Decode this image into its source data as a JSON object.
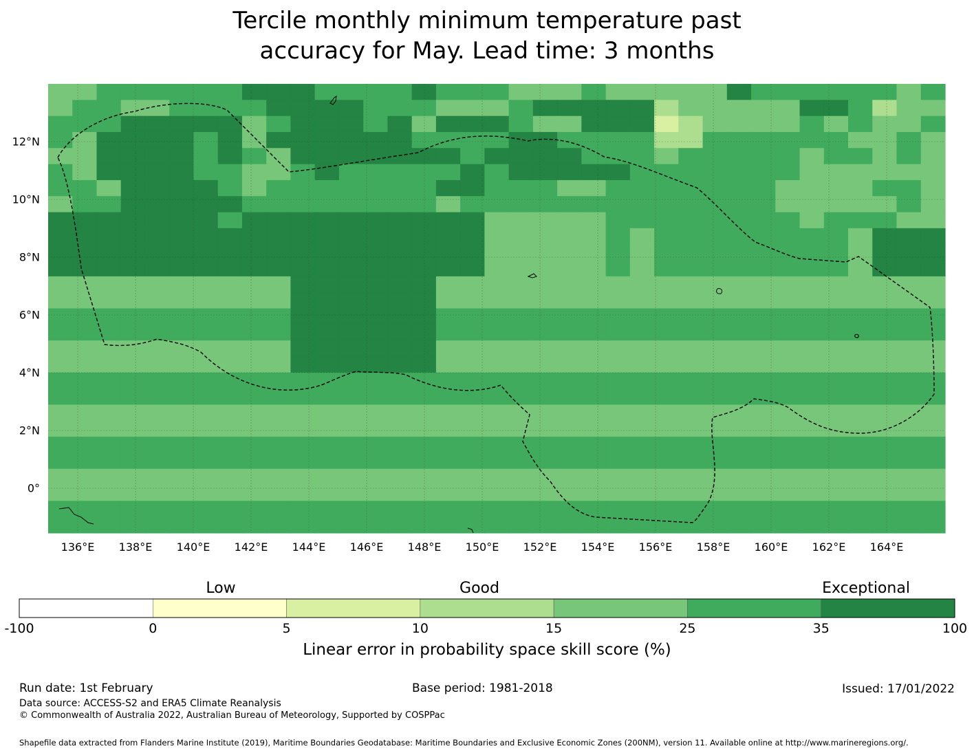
{
  "title": {
    "line1": "Tercile monthly minimum temperature past",
    "line2": "accuracy for May. Lead time: 3 months"
  },
  "map": {
    "x_ticks": [
      "136°E",
      "138°E",
      "140°E",
      "142°E",
      "144°E",
      "146°E",
      "148°E",
      "150°E",
      "152°E",
      "154°E",
      "156°E",
      "158°E",
      "160°E",
      "162°E",
      "164°E"
    ],
    "y_ticks": [
      "12°N",
      "10°N",
      "8°N",
      "6°N",
      "4°N",
      "2°N",
      "0°"
    ],
    "grid_rows": [
      "4455555566655556555444544444655555545",
      "4554455556666555444566666344444665344",
      "5556666645666564666544666234444545445",
      "5466665646666665555665555335555554454",
      "4466665654666666656666555455555455454",
      "5466665544565555565666665555555444444",
      "5546666545555555665554455555554444554",
      "4556666655555555455555555555554444454",
      "6666666566666666664444455555555455544",
      "6666666666666666664444454555555554666",
      "6666666666666666664444454555555554666",
      "6666666666666666664444454555555554666",
      "4444444444666666444444444444444444444",
      "4444444444666666444444444444444444444",
      "5555555555666666555555555555555555555",
      "5555555555666666555555555555555555555",
      "4444444444666666444444444444444444444",
      "4444444444666666444444444444444444444",
      "5555555555555555555555555555555555555",
      "5555555555555555555555555555555555555",
      "4444444444444444444444444444444444444",
      "4444444444444444444444444444444444444",
      "5555555555555555555555555555555555555",
      "5555555555555555555555555555555555555",
      "4444444444444444444444444444444444444",
      "4444444444444444444444444444444444444",
      "5555555555555555555555555555555555555",
      "5555555555555555555555555555555555555"
    ]
  },
  "colorbar": {
    "categories": [
      "Low",
      "Good",
      "Exceptional"
    ],
    "ticks": [
      "-100",
      "0",
      "5",
      "10",
      "15",
      "25",
      "35",
      "100"
    ],
    "colors": [
      "#ffffff",
      "#ffffcc",
      "#d9f0a3",
      "#addd8e",
      "#78c679",
      "#41ab5d",
      "#238443"
    ],
    "label": "Linear error in probability space skill score (%)"
  },
  "footer": {
    "run_date": "Run date: 1st February",
    "base_period": "Base period: 1981-2018",
    "issued": "Issued: 17/01/2022",
    "data_source": "Data source: ACCESS-S2 and ERA5 Climate Reanalysis",
    "copyright": "© Commonwealth of Australia 2022, Australian Bureau of Meteorology, Supported by COSPPac",
    "shapefile": "Shapefile data extracted from Flanders Marine Institute (2019), Maritime Boundaries Geodatabase: Maritime Boundaries and Exclusive Economic Zones (200NM), version 11. Available online at http://www.marineregions.org/."
  }
}
